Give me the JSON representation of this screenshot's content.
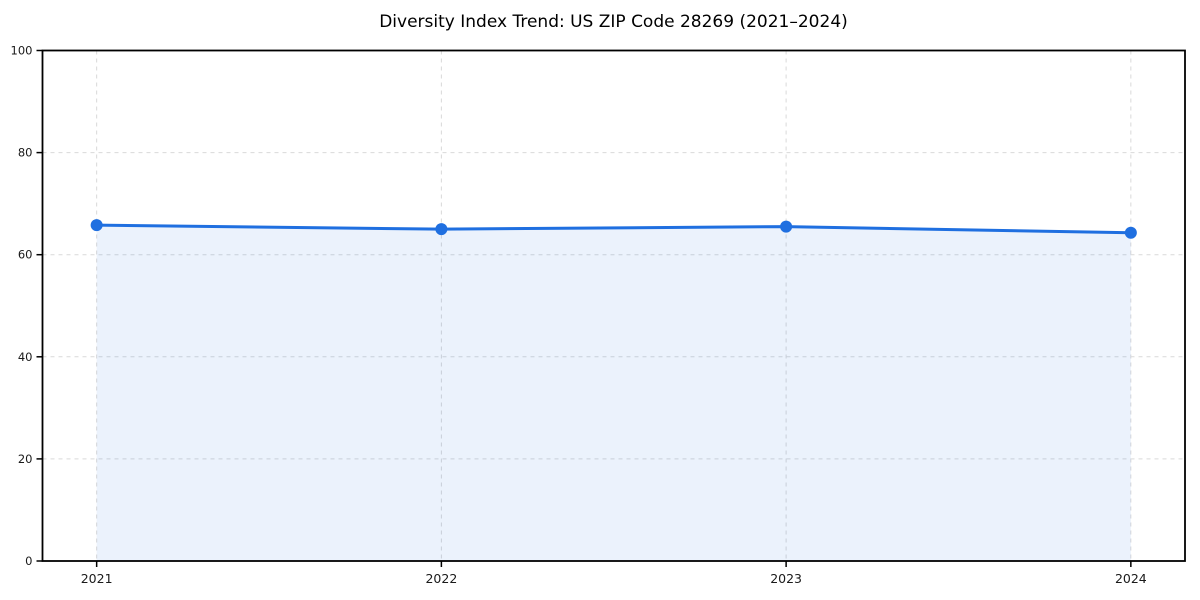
{
  "title": "Diversity Index Trend: US ZIP Code 28269 (2021–2024)",
  "chart_data": {
    "type": "line",
    "title": "Diversity Index Trend: US ZIP Code 28269 (2021–2024)",
    "x": [
      "2021",
      "2022",
      "2023",
      "2024"
    ],
    "series": [
      {
        "name": "Diversity Index",
        "values": [
          65.8,
          65.0,
          65.5,
          64.3
        ]
      }
    ],
    "xlabel": "",
    "ylabel": "",
    "ylim": [
      0,
      100
    ],
    "yticks": [
      0,
      20,
      40,
      60,
      80,
      100
    ],
    "grid": true,
    "legend_position": "none",
    "area_fill": true,
    "colors": {
      "line": "#1f6fe0",
      "marker": "#1f6fe0",
      "fill": "#1f6fe0",
      "fill_opacity": 0.09,
      "grid": "#d9d9d9",
      "spine": "#000000",
      "tick_label": "#1a1a1a",
      "background": "#ffffff"
    }
  }
}
